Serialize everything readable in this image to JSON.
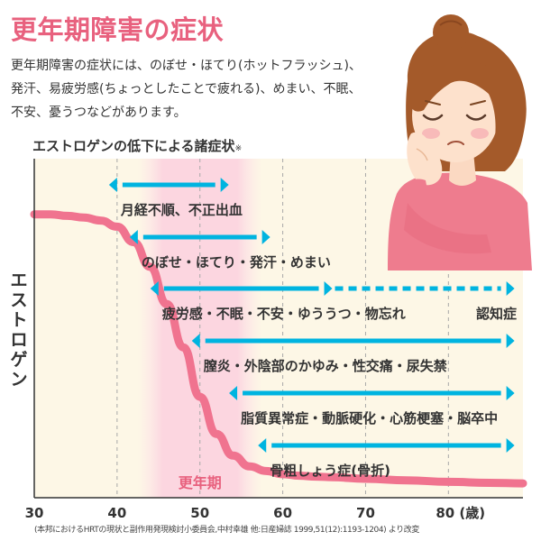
{
  "title": "更年期障害の症状",
  "description": [
    "更年期障害の症状には、のぼせ・ほてり(ホットフラッシュ)、",
    "発汗、易疲労感(ちょっとしたことで疲れる)、めまい、不眠、",
    "不安、憂うつなどがあります。"
  ],
  "source": "(本邦におけるHRTの現状と副作用発現検討小委員会,中村幸雄 他:日産婦誌 1999,51(12):1193-1204) より改変",
  "colors": {
    "accent": "#e8617e",
    "curve": "#f0738f",
    "arrow": "#00b4e0",
    "band": "#fde0e7",
    "plot_bg": "#fdf7e6"
  },
  "chart_data": {
    "type": "line",
    "title": "エストロゲンの低下による諸症状",
    "title_mark": "※",
    "ylabel": "エストロゲン",
    "xlabel": "",
    "x_tick_labels": [
      "30",
      "40",
      "50",
      "60",
      "70",
      "80 (歳)"
    ],
    "x_ticks": [
      30,
      40,
      50,
      60,
      70,
      80
    ],
    "xlim": [
      30,
      89
    ],
    "ylim": [
      0,
      1
    ],
    "grid": true,
    "menopause_band": {
      "label": "更年期",
      "start": 45,
      "end": 55
    },
    "estrogen_curve": {
      "x": [
        30,
        32,
        34,
        36,
        38,
        40,
        42,
        44,
        46,
        48,
        50,
        52,
        54,
        56,
        58,
        60,
        62,
        64,
        66,
        70,
        75,
        80,
        85,
        89
      ],
      "y": [
        0.89,
        0.89,
        0.885,
        0.88,
        0.87,
        0.85,
        0.8,
        0.72,
        0.6,
        0.46,
        0.3,
        0.18,
        0.11,
        0.075,
        0.06,
        0.05,
        0.045,
        0.042,
        0.04,
        0.035,
        0.03,
        0.025,
        0.022,
        0.02
      ]
    },
    "symptoms": [
      {
        "label": "月経不順、不正出血",
        "start": 40,
        "end": 52.5
      },
      {
        "label": "のぼせ・ほてり・発汗・めまい",
        "start": 42.5,
        "end": 57.5
      },
      {
        "label": "疲労感・不眠・不安・ゆううつ・物忘れ",
        "start": 45,
        "end": 65,
        "continued_end": 87,
        "continued_label": "認知症"
      },
      {
        "label": "膣炎・外陰部のかゆみ・性交痛・尿失禁",
        "start": 50,
        "end": 87
      },
      {
        "label": "脂質異常症・動脈硬化・心筋梗塞・脳卒中",
        "start": 54.5,
        "end": 87
      },
      {
        "label": "骨粗しょう症(骨折)",
        "start": 58,
        "end": 87
      }
    ]
  }
}
